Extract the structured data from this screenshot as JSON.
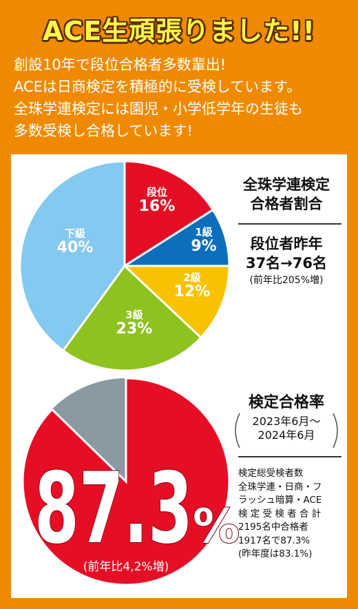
{
  "header": {
    "title": "ACE生頑張りました!!"
  },
  "intro": {
    "lines": [
      "創設10年で段位合格者多数輩出!",
      "ACEは日商検定を積極的に受検しています。",
      "全珠学連検定には園児・小学低学年の生徒も",
      "多数受検し合格しています!"
    ]
  },
  "pie_section": {
    "heading_line1": "全珠学連検定",
    "heading_line2": "合格者割合",
    "dan_line1": "段位者昨年",
    "dan_line2": "37名→76名",
    "dan_line3": "(前年比205%増)"
  },
  "chart_data": {
    "type": "pie",
    "slices": [
      {
        "label": "段位",
        "value_text": "16%",
        "value": 16,
        "color": "#e60e25"
      },
      {
        "label": "1級",
        "value_text": "9%",
        "value": 9,
        "color": "#0c6fbd"
      },
      {
        "label": "2級",
        "value_text": "12%",
        "value": 12,
        "color": "#f9c200"
      },
      {
        "label": "3級",
        "value_text": "23%",
        "value": 23,
        "color": "#8dc21f"
      },
      {
        "label": "下級",
        "value_text": "40%",
        "value": 40,
        "color": "#84c9ef"
      }
    ]
  },
  "rate_section": {
    "heading": "検定合格率",
    "period_line1": "2023年6月〜",
    "period_line2": "2024年6月",
    "big_number": "87.3",
    "big_percent": "%",
    "sub": "(前年比4,2%増)",
    "rate_value": 87.3,
    "red_color": "#e60e25",
    "grey_color": "#8a99a2",
    "note_lines": [
      "検定総受検者数",
      "全珠学連・日商・フ",
      "ラッシュ暗算・ACE",
      "検 定 受 検 者 合 計",
      "2195名中合格者",
      "1917名で87.3%",
      "(昨年度は83.1%)"
    ]
  }
}
